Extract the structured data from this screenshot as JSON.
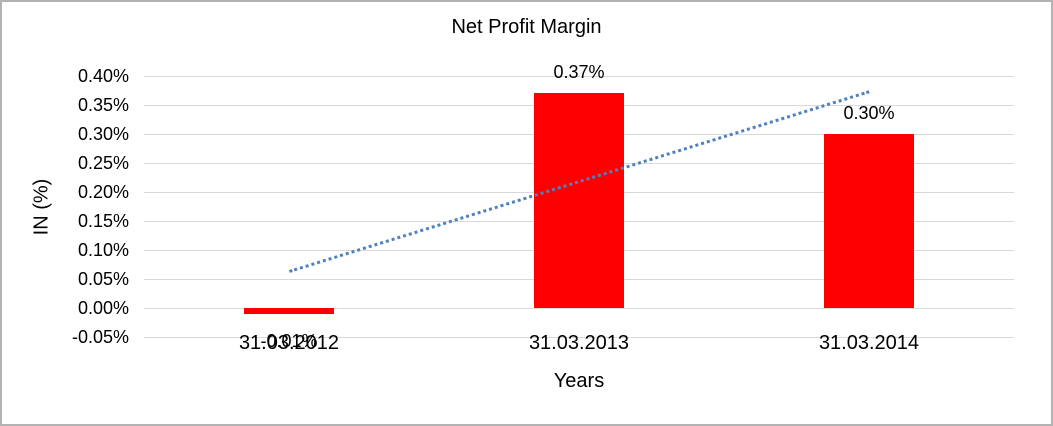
{
  "chart_data": {
    "type": "bar",
    "title": "Net Profit Margin",
    "xlabel": "Years",
    "ylabel": "IN (%)",
    "categories": [
      "31.03.2012",
      "31.03.2013",
      "31.03.2014"
    ],
    "values": [
      -0.01,
      0.37,
      0.3
    ],
    "data_labels": [
      "-0.01%",
      "0.37%",
      "0.30%"
    ],
    "y_ticks": [
      {
        "value": 0.4,
        "label": "0.40%"
      },
      {
        "value": 0.35,
        "label": "0.35%"
      },
      {
        "value": 0.3,
        "label": "0.30%"
      },
      {
        "value": 0.25,
        "label": "0.25%"
      },
      {
        "value": 0.2,
        "label": "0.20%"
      },
      {
        "value": 0.15,
        "label": "0.15%"
      },
      {
        "value": 0.1,
        "label": "0.10%"
      },
      {
        "value": 0.05,
        "label": "0.05%"
      },
      {
        "value": 0.0,
        "label": "0.00%"
      },
      {
        "value": -0.05,
        "label": "-0.05%"
      }
    ],
    "ylim": [
      -0.05,
      0.4
    ],
    "grid": true,
    "legend": "none",
    "bar_color": "#FF0000",
    "gridline_color": "#D9D9D9",
    "text_color": "#000000",
    "frame_color": "#B3B3B3",
    "trendline": {
      "type": "linear",
      "style": "dotted",
      "color": "#4F81BD",
      "endpoint_values": [
        0.065,
        0.375
      ],
      "endpoint_categories": [
        0,
        2
      ]
    }
  }
}
